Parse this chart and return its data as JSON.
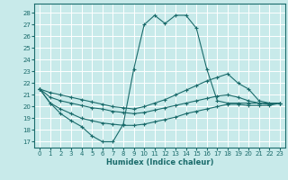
{
  "xlabel": "Humidex (Indice chaleur)",
  "bg_color": "#c8eaea",
  "grid_color": "#b8d8d8",
  "line_color": "#1a6b6b",
  "xlim": [
    -0.5,
    23.5
  ],
  "ylim": [
    16.5,
    28.8
  ],
  "yticks": [
    17,
    18,
    19,
    20,
    21,
    22,
    23,
    24,
    25,
    26,
    27,
    28
  ],
  "xticks": [
    0,
    1,
    2,
    3,
    4,
    5,
    6,
    7,
    8,
    9,
    10,
    11,
    12,
    13,
    14,
    15,
    16,
    17,
    18,
    19,
    20,
    21,
    22,
    23
  ],
  "series": [
    {
      "x": [
        0,
        1,
        2,
        3,
        4,
        5,
        6,
        7,
        8,
        9,
        10,
        11,
        12,
        13,
        14,
        15,
        16,
        17,
        18,
        19,
        20,
        21,
        22,
        23
      ],
      "y": [
        21.5,
        20.3,
        19.4,
        18.8,
        18.3,
        17.5,
        17.0,
        17.0,
        18.5,
        23.2,
        27.0,
        27.8,
        27.1,
        27.8,
        27.8,
        26.7,
        23.2,
        20.5,
        20.3,
        20.3,
        20.3,
        20.3,
        20.3,
        20.3
      ]
    },
    {
      "x": [
        0,
        1,
        2,
        3,
        4,
        5,
        6,
        7,
        8,
        9,
        10,
        11,
        12,
        13,
        14,
        15,
        16,
        17,
        18,
        19,
        20,
        21,
        22,
        23
      ],
      "y": [
        21.5,
        21.2,
        21.0,
        20.8,
        20.6,
        20.4,
        20.2,
        20.0,
        19.9,
        19.8,
        20.0,
        20.3,
        20.6,
        21.0,
        21.4,
        21.8,
        22.2,
        22.5,
        22.8,
        22.0,
        21.5,
        20.5,
        20.3,
        20.3
      ]
    },
    {
      "x": [
        0,
        1,
        2,
        3,
        4,
        5,
        6,
        7,
        8,
        9,
        10,
        11,
        12,
        13,
        14,
        15,
        16,
        17,
        18,
        19,
        20,
        21,
        22,
        23
      ],
      "y": [
        21.5,
        20.8,
        20.5,
        20.3,
        20.1,
        19.9,
        19.8,
        19.6,
        19.5,
        19.4,
        19.5,
        19.7,
        19.9,
        20.1,
        20.3,
        20.5,
        20.7,
        20.9,
        21.0,
        20.8,
        20.5,
        20.3,
        20.2,
        20.3
      ]
    },
    {
      "x": [
        0,
        1,
        2,
        3,
        4,
        5,
        6,
        7,
        8,
        9,
        10,
        11,
        12,
        13,
        14,
        15,
        16,
        17,
        18,
        19,
        20,
        21,
        22,
        23
      ],
      "y": [
        21.5,
        20.3,
        19.8,
        19.4,
        19.0,
        18.8,
        18.6,
        18.5,
        18.4,
        18.4,
        18.5,
        18.7,
        18.9,
        19.1,
        19.4,
        19.6,
        19.8,
        20.0,
        20.2,
        20.2,
        20.1,
        20.1,
        20.1,
        20.3
      ]
    }
  ]
}
